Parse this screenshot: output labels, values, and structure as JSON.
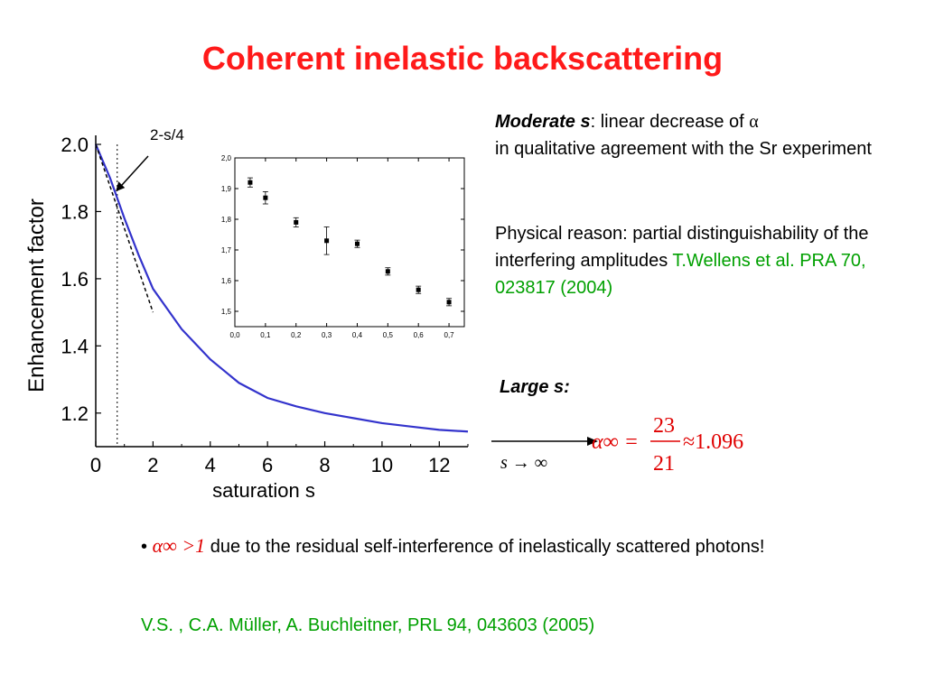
{
  "slide": {
    "title": "Coherent inelastic backscattering",
    "annotation_label": "2-s/4",
    "moderate": {
      "heading": "Moderate s",
      "text_1": ": linear decrease of ",
      "alpha": "α",
      "text_2": "in qualitative agreement with the Sr experiment"
    },
    "reason": {
      "text": "Physical reason: partial distinguishability of the interfering amplitudes ",
      "citation": "T.Wellens et al. PRA 70, 023817 (2004)"
    },
    "large_s": "Large s:",
    "formula": {
      "arrow_label": "s → ∞",
      "lhs": "α∞ =",
      "numerator": "23",
      "denominator": "21",
      "approx": "≈1.096"
    },
    "bullet": {
      "symbol": "•",
      "math_alpha": "α∞",
      "math_rel": " >1",
      "text": " due to the residual self-interference of inelastically scattered photons!"
    },
    "reference": "V.S. , C.A. Müller, A. Buchleitner, PRL 94, 043603 (2005)",
    "colors": {
      "title": "#ff1a1a",
      "green": "#00a000",
      "curve": "#3333cc",
      "formula": "#e00000"
    }
  },
  "chart_data": [
    {
      "type": "line",
      "title": "",
      "xlabel": "saturation s",
      "ylabel": "Enhancement factor",
      "xlim": [
        0,
        13
      ],
      "ylim": [
        1.1,
        2.0
      ],
      "x_ticks": [
        "0",
        "2",
        "4",
        "6",
        "8",
        "10",
        "12"
      ],
      "y_ticks": [
        "1.2",
        "1.4",
        "1.6",
        "1.8",
        "2.0"
      ],
      "series": [
        {
          "x": [
            0,
            0.5,
            1,
            1.5,
            2,
            3,
            4,
            5,
            6,
            7,
            8,
            9,
            10,
            11,
            12,
            13
          ],
          "values": [
            2.0,
            1.9,
            1.78,
            1.67,
            1.57,
            1.45,
            1.36,
            1.29,
            1.245,
            1.22,
            1.2,
            1.185,
            1.17,
            1.16,
            1.15,
            1.145
          ]
        },
        {
          "x": [
            0,
            2
          ],
          "values": [
            2.0,
            1.5
          ],
          "style": "dashed"
        }
      ],
      "vertical_line_x": 0.75
    },
    {
      "type": "scatter",
      "title": "",
      "xlim": [
        0.0,
        0.75
      ],
      "ylim": [
        1.45,
        2.0
      ],
      "x_ticks": [
        "0,0",
        "0,1",
        "0,2",
        "0,3",
        "0,4",
        "0,5",
        "0,6",
        "0,7"
      ],
      "y_ticks": [
        "1,5",
        "1,6",
        "1,7",
        "1,8",
        "1,9",
        "2,0"
      ],
      "series": [
        {
          "x": [
            0.05,
            0.1,
            0.2,
            0.3,
            0.4,
            0.5,
            0.6,
            0.7
          ],
          "values": [
            1.92,
            1.87,
            1.79,
            1.73,
            1.72,
            1.63,
            1.57,
            1.53
          ],
          "errors": [
            0.015,
            0.02,
            0.015,
            0.045,
            0.012,
            0.012,
            0.012,
            0.012
          ]
        }
      ]
    }
  ]
}
